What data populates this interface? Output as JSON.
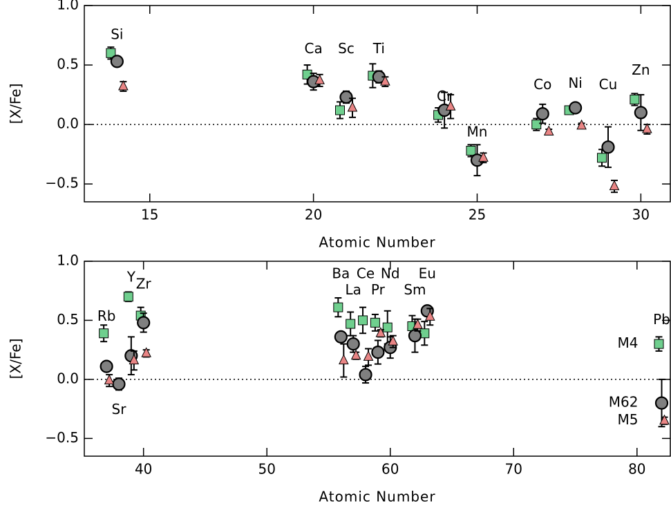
{
  "chart_data": [
    {
      "type": "errorbar-scatter",
      "x_label": "Atomic Number",
      "y_label": "[X/Fe]",
      "x": [
        14,
        20,
        21,
        22,
        24,
        25,
        27,
        28,
        29,
        30
      ],
      "labels": [
        "Si",
        "Ca",
        "Sc",
        "Ti",
        "Cr",
        "Mn",
        "Co",
        "Ni",
        "Cu",
        "Zn"
      ],
      "series": [
        {
          "name": "M4",
          "color": "#6fcf8e",
          "marker": "square",
          "values": [
            0.6,
            0.42,
            0.12,
            0.41,
            0.08,
            -0.22,
            0.0,
            0.12,
            -0.28,
            0.21
          ],
          "errors": [
            0.05,
            0.08,
            0.07,
            0.1,
            0.06,
            0.05,
            0.05,
            0.03,
            0.07,
            0.05
          ]
        },
        {
          "name": "M62",
          "color": "#808080",
          "marker": "circle",
          "values": [
            0.53,
            0.36,
            0.23,
            0.4,
            0.12,
            -0.3,
            0.09,
            0.14,
            -0.19,
            0.1
          ],
          "errors": [
            0.03,
            0.07,
            0.05,
            0.05,
            0.15,
            0.13,
            0.08,
            0.02,
            0.17,
            0.15
          ]
        },
        {
          "name": "M5",
          "color": "#e98585",
          "marker": "triangle",
          "values": [
            0.32,
            0.37,
            0.14,
            0.36,
            0.15,
            -0.28,
            -0.06,
            -0.01,
            -0.52,
            -0.04
          ],
          "errors": [
            0.04,
            0.05,
            0.08,
            0.04,
            0.1,
            0.04,
            0.02,
            0.02,
            0.05,
            0.04
          ]
        }
      ],
      "xlim": [
        13,
        30.9
      ],
      "ylim": [
        -0.65,
        1.0
      ],
      "xticks": [
        15,
        20,
        25,
        30
      ],
      "yticks": [
        {
          "value": -0.5,
          "label": "−0.5"
        },
        {
          "value": 0,
          "label": "0.0"
        },
        {
          "value": 0.5,
          "label": "0.5"
        },
        {
          "value": 1.0,
          "label": "1.0"
        }
      ],
      "zero_line": true,
      "legend": false
    },
    {
      "type": "errorbar-scatter",
      "x_label": "Atomic Number",
      "y_label": "[X/Fe]",
      "x": [
        37,
        38,
        39,
        40,
        56,
        57,
        58,
        59,
        60,
        62,
        63,
        82
      ],
      "labels": [
        "Rb",
        "Sr",
        "Y",
        "Zr",
        "Ba",
        "La",
        "Ce",
        "Pr",
        "Nd",
        "Sm",
        "Eu",
        "Pb"
      ],
      "series": [
        {
          "name": "M4",
          "color": "#6fcf8e",
          "marker": "square",
          "values": [
            0.39,
            null,
            0.7,
            0.54,
            0.61,
            0.47,
            0.5,
            0.48,
            0.44,
            0.45,
            0.39,
            0.3
          ],
          "errors": [
            0.07,
            null,
            0.04,
            0.07,
            0.08,
            0.1,
            0.11,
            0.07,
            0.14,
            0.09,
            0.1,
            0.06
          ]
        },
        {
          "name": "M62",
          "color": "#808080",
          "marker": "circle",
          "values": [
            0.11,
            -0.04,
            0.2,
            0.48,
            0.36,
            0.3,
            0.04,
            0.23,
            0.27,
            0.37,
            0.58,
            -0.2
          ],
          "errors": [
            0.04,
            0.05,
            0.16,
            0.08,
            0.03,
            0.07,
            0.07,
            0.1,
            0.09,
            0.14,
            0.04,
            0.2
          ]
        },
        {
          "name": "M5",
          "color": "#e98585",
          "marker": "triangle",
          "values": [
            -0.01,
            null,
            0.16,
            0.22,
            0.16,
            0.2,
            0.19,
            0.39,
            0.32,
            0.46,
            0.53,
            -0.35
          ],
          "errors": [
            0.05,
            null,
            0.08,
            0.03,
            0.14,
            0.03,
            0.07,
            0.03,
            0.05,
            0.05,
            0.07,
            0.03
          ]
        }
      ],
      "xlim": [
        35.2,
        82.7
      ],
      "ylim": [
        -0.65,
        1.0
      ],
      "xticks": [
        40,
        50,
        60,
        70,
        80
      ],
      "yticks": [
        {
          "value": -0.5,
          "label": "−0.5"
        },
        {
          "value": 0,
          "label": "0.0"
        },
        {
          "value": 0.5,
          "label": "0.5"
        },
        {
          "value": 1.0,
          "label": "1.0"
        }
      ],
      "zero_line": true,
      "legend": true
    }
  ]
}
